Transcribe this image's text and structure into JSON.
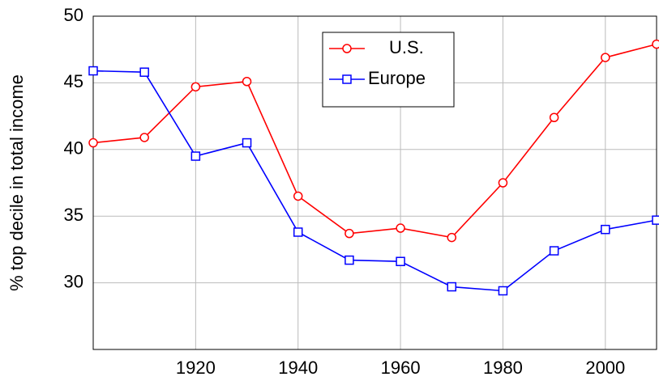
{
  "chart_data": {
    "type": "line",
    "ylabel": "% top decile in total income",
    "x": [
      1900,
      1910,
      1920,
      1930,
      1940,
      1950,
      1960,
      1970,
      1980,
      1990,
      2000,
      2010
    ],
    "series": [
      {
        "name": "U.S.",
        "color": "#ff0000",
        "marker": "circle",
        "values": [
          40.5,
          40.9,
          44.7,
          45.1,
          36.5,
          33.7,
          34.1,
          33.4,
          37.5,
          42.4,
          46.9,
          47.9
        ]
      },
      {
        "name": "Europe",
        "color": "#0000ff",
        "marker": "square",
        "values": [
          45.9,
          45.8,
          39.5,
          40.5,
          33.8,
          31.7,
          31.6,
          29.7,
          29.4,
          32.4,
          34.0,
          34.7
        ]
      }
    ],
    "xlim": [
      1900,
      2010
    ],
    "xticks": [
      1920,
      1940,
      1960,
      1980,
      2000
    ],
    "ylim": [
      25,
      50
    ],
    "yticks": [
      30,
      35,
      40,
      45,
      50
    ],
    "grid": true,
    "legend": "top"
  }
}
